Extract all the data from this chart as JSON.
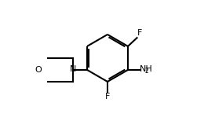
{
  "background_color": "#ffffff",
  "line_color": "#000000",
  "line_width": 1.5,
  "font_size_labels": 8,
  "font_size_subscript": 5.5,
  "figsize": [
    2.74,
    1.54
  ],
  "dpi": 100,
  "F_top_label": "F",
  "F_bottom_label": "F",
  "N_label": "N",
  "O_label": "O"
}
